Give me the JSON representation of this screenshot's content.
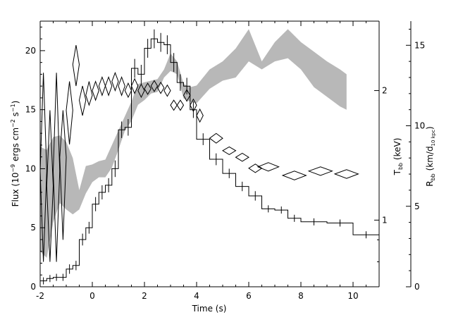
{
  "chart_data": {
    "type": "line",
    "xlabel": "Time (s)",
    "xlim": [
      -2,
      11
    ],
    "x_ticks": [
      "-2",
      "0",
      "2",
      "4",
      "6",
      "8",
      "10"
    ],
    "left_axis": {
      "label_parts": [
        "Flux (10",
        "−9",
        " ergs cm",
        "−2",
        " s",
        "−1",
        ")"
      ],
      "ylim": [
        0,
        22.5
      ],
      "ticks": [
        "0",
        "5",
        "10",
        "15",
        "20"
      ]
    },
    "middle_axis": {
      "label_parts": [
        "T",
        "bb",
        " (keV)"
      ],
      "scale": "log",
      "ylim": [
        0.7,
        2.9
      ],
      "ticks": [
        "1",
        "2"
      ]
    },
    "right_axis": {
      "label_parts": [
        "R",
        "bb",
        " (km/d",
        "10 kpc",
        ")"
      ],
      "ylim": [
        0,
        16.5
      ],
      "ticks": [
        "0",
        "5",
        "10",
        "15"
      ]
    },
    "series": [
      {
        "style": "histogram",
        "axis": "left",
        "bins": [
          [
            -2.0,
            -1.75,
            0.5
          ],
          [
            -1.75,
            -1.5,
            0.7
          ],
          [
            -1.5,
            -1.25,
            0.8
          ],
          [
            -1.25,
            -1.0,
            0.8
          ],
          [
            -1.0,
            -0.75,
            1.5
          ],
          [
            -0.75,
            -0.5,
            1.8
          ],
          [
            -0.5,
            -0.25,
            4.0
          ],
          [
            -0.25,
            0.0,
            5.0
          ],
          [
            0.0,
            0.25,
            7.0
          ],
          [
            0.25,
            0.5,
            8.0
          ],
          [
            0.5,
            0.75,
            8.6
          ],
          [
            0.75,
            1.0,
            10.0
          ],
          [
            1.0,
            1.25,
            13.3
          ],
          [
            1.25,
            1.5,
            13.5
          ],
          [
            1.5,
            1.75,
            18.5
          ],
          [
            1.75,
            2.0,
            18.0
          ],
          [
            2.0,
            2.25,
            20.2
          ],
          [
            2.25,
            2.5,
            21.0
          ],
          [
            2.5,
            2.75,
            20.7
          ],
          [
            2.75,
            3.0,
            20.5
          ],
          [
            3.0,
            3.25,
            19.0
          ],
          [
            3.25,
            3.5,
            17.3
          ],
          [
            3.5,
            3.75,
            17.0
          ],
          [
            3.75,
            4.0,
            15.0
          ],
          [
            4.0,
            4.5,
            12.5
          ],
          [
            4.5,
            5.0,
            10.8
          ],
          [
            5.0,
            5.5,
            9.6
          ],
          [
            5.5,
            6.0,
            8.5
          ],
          [
            6.0,
            6.5,
            7.7
          ],
          [
            6.5,
            7.0,
            6.6
          ],
          [
            7.0,
            7.5,
            6.5
          ],
          [
            7.5,
            8.0,
            5.8
          ],
          [
            8.0,
            9.0,
            5.5
          ],
          [
            9.0,
            10.0,
            5.4
          ],
          [
            10.0,
            11.0,
            4.4
          ]
        ],
        "errors": [
          0.3,
          0.3,
          0.3,
          0.3,
          0.4,
          0.4,
          0.5,
          0.5,
          0.6,
          0.6,
          0.6,
          0.7,
          0.7,
          0.7,
          0.8,
          0.8,
          0.8,
          0.8,
          0.8,
          0.8,
          0.8,
          0.7,
          0.7,
          0.7,
          0.5,
          0.5,
          0.4,
          0.4,
          0.4,
          0.3,
          0.3,
          0.3,
          0.3,
          0.3,
          0.3
        ]
      },
      {
        "style": "band",
        "axis": "right",
        "x": [
          -2.0,
          -1.75,
          -1.5,
          -1.25,
          -1.0,
          -0.75,
          -0.5,
          -0.25,
          0.0,
          0.25,
          0.5,
          0.75,
          1.0,
          1.25,
          1.5,
          1.75,
          2.0,
          2.25,
          2.5,
          2.75,
          3.0,
          3.25,
          3.5,
          3.75,
          4.0,
          4.5,
          5.0,
          5.5,
          6.0,
          6.5,
          7.0,
          7.5,
          8.0,
          8.5,
          9.0,
          9.5,
          9.75
        ],
        "low": [
          2.2,
          1.8,
          4.0,
          5.2,
          4.8,
          4.5,
          4.8,
          5.8,
          6.5,
          6.8,
          6.8,
          7.4,
          8.5,
          9.7,
          10.3,
          11.3,
          11.6,
          12.0,
          12.1,
          13.0,
          13.4,
          13.2,
          11.7,
          11.5,
          11.4,
          12.3,
          12.8,
          13.0,
          14.0,
          13.5,
          14.0,
          14.2,
          13.5,
          12.4,
          11.8,
          11.2,
          11.0
        ],
        "high": [
          8.7,
          8.5,
          9.3,
          9.4,
          9.0,
          8.0,
          6.0,
          7.5,
          7.6,
          7.8,
          7.9,
          8.8,
          9.7,
          10.6,
          11.5,
          12.6,
          12.7,
          12.8,
          12.9,
          13.5,
          14.5,
          14.0,
          12.6,
          12.4,
          12.5,
          13.5,
          14.0,
          14.8,
          16.0,
          14.0,
          15.2,
          16.0,
          15.2,
          14.6,
          14.0,
          13.5,
          13.2
        ]
      },
      {
        "style": "diamonds",
        "axis": "middle",
        "points": [
          [
            -1.875,
            1.3,
            0.8,
            2.2
          ],
          [
            -1.625,
            1.2,
            0.8,
            1.8
          ],
          [
            -1.375,
            1.3,
            0.8,
            2.2
          ],
          [
            -1.125,
            1.4,
            0.9,
            1.8
          ],
          [
            -0.875,
            1.8,
            1.5,
            2.1
          ],
          [
            -0.625,
            2.3,
            2.05,
            2.55
          ],
          [
            -0.375,
            1.9,
            1.75,
            2.05
          ],
          [
            -0.125,
            1.95,
            1.85,
            2.1
          ],
          [
            0.125,
            2.0,
            1.9,
            2.1
          ],
          [
            0.375,
            2.05,
            1.95,
            2.15
          ],
          [
            0.625,
            2.05,
            1.95,
            2.15
          ],
          [
            0.875,
            2.1,
            2.0,
            2.2
          ],
          [
            1.125,
            2.05,
            1.95,
            2.15
          ],
          [
            1.375,
            2.0,
            1.93,
            2.08
          ],
          [
            1.625,
            2.05,
            1.97,
            2.13
          ],
          [
            1.875,
            2.0,
            1.93,
            2.07
          ],
          [
            2.125,
            2.02,
            1.96,
            2.08
          ],
          [
            2.375,
            2.05,
            1.99,
            2.11
          ],
          [
            2.625,
            2.03,
            1.97,
            2.09
          ],
          [
            2.875,
            2.0,
            1.94,
            2.06
          ],
          [
            3.125,
            1.85,
            1.8,
            1.9
          ],
          [
            3.375,
            1.85,
            1.8,
            1.9
          ],
          [
            3.625,
            1.95,
            1.89,
            2.01
          ],
          [
            3.875,
            1.85,
            1.79,
            1.91
          ],
          [
            4.125,
            1.75,
            1.69,
            1.81
          ],
          [
            4.75,
            1.55,
            1.51,
            1.59
          ],
          [
            5.25,
            1.45,
            1.42,
            1.48
          ],
          [
            5.75,
            1.4,
            1.37,
            1.43
          ],
          [
            6.25,
            1.32,
            1.29,
            1.35
          ],
          [
            6.75,
            1.33,
            1.3,
            1.36
          ],
          [
            7.75,
            1.27,
            1.24,
            1.3
          ],
          [
            8.75,
            1.3,
            1.27,
            1.33
          ],
          [
            9.75,
            1.28,
            1.25,
            1.31
          ]
        ],
        "half_width": [
          0.125,
          0.125,
          0.125,
          0.125,
          0.125,
          0.125,
          0.125,
          0.125,
          0.125,
          0.125,
          0.125,
          0.125,
          0.125,
          0.125,
          0.125,
          0.125,
          0.125,
          0.125,
          0.125,
          0.125,
          0.125,
          0.125,
          0.125,
          0.125,
          0.125,
          0.25,
          0.25,
          0.25,
          0.25,
          0.4,
          0.45,
          0.45,
          0.45
        ]
      }
    ]
  }
}
